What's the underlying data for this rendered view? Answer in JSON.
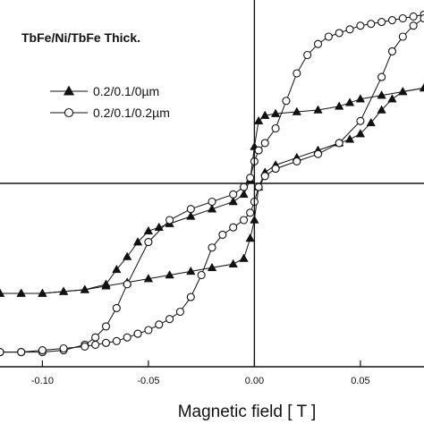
{
  "chart_data": {
    "type": "line",
    "title": "TbFe/Ni/TbFe Thick.",
    "xlabel": "Magnetic field [ T ]",
    "ylabel": "",
    "xlim": [
      -0.12,
      0.08
    ],
    "ylim": [
      -1.0,
      1.0
    ],
    "xticks": [
      -0.1,
      -0.05,
      0.0,
      0.05
    ],
    "xtick_labels": [
      "-0.10",
      "-0.05",
      "0.00",
      "0.05"
    ],
    "grid": false,
    "legend_position": "upper-left",
    "series": [
      {
        "name": "0.2/0.1/0µm",
        "marker": "filled-triangle",
        "color": "#111111",
        "loops": [
          {
            "branch": "descending",
            "x": [
              0.08,
              0.07,
              0.06,
              0.05,
              0.045,
              0.04,
              0.03,
              0.02,
              0.01,
              0.005,
              0.002,
              0.0,
              -0.002,
              -0.005,
              -0.01,
              -0.02,
              -0.03,
              -0.04,
              -0.045,
              -0.05,
              -0.055,
              -0.06,
              -0.065,
              -0.07,
              -0.08,
              -0.09,
              -0.1,
              -0.11,
              -0.12
            ],
            "y": [
              0.52,
              0.5,
              0.48,
              0.46,
              0.44,
              0.42,
              0.4,
              0.39,
              0.38,
              0.37,
              0.34,
              0.2,
              0.02,
              -0.06,
              -0.1,
              -0.14,
              -0.18,
              -0.22,
              -0.24,
              -0.26,
              -0.32,
              -0.4,
              -0.47,
              -0.55,
              -0.58,
              -0.59,
              -0.6,
              -0.6,
              -0.6
            ]
          },
          {
            "branch": "ascending",
            "x": [
              -0.12,
              -0.11,
              -0.1,
              -0.09,
              -0.08,
              -0.07,
              -0.06,
              -0.05,
              -0.04,
              -0.03,
              -0.02,
              -0.01,
              -0.005,
              -0.002,
              0.0,
              0.002,
              0.005,
              0.01,
              0.02,
              0.03,
              0.04,
              0.045,
              0.05,
              0.055,
              0.06,
              0.065,
              0.07,
              0.08
            ],
            "y": [
              -0.6,
              -0.6,
              -0.6,
              -0.59,
              -0.58,
              -0.56,
              -0.54,
              -0.52,
              -0.5,
              -0.48,
              -0.46,
              -0.44,
              -0.41,
              -0.3,
              -0.2,
              -0.02,
              0.06,
              0.1,
              0.14,
              0.18,
              0.22,
              0.24,
              0.27,
              0.33,
              0.4,
              0.46,
              0.5,
              0.52
            ]
          }
        ]
      },
      {
        "name": "0.2/0.1/0.2µm",
        "marker": "open-circle",
        "color": "#111111",
        "loops": [
          {
            "branch": "descending",
            "x": [
              0.08,
              0.075,
              0.07,
              0.065,
              0.06,
              0.055,
              0.05,
              0.045,
              0.04,
              0.035,
              0.03,
              0.025,
              0.02,
              0.015,
              0.01,
              0.005,
              0.002,
              0.0,
              -0.002,
              -0.005,
              -0.01,
              -0.02,
              -0.03,
              -0.04,
              -0.05,
              -0.06,
              -0.065,
              -0.07,
              -0.075,
              -0.08,
              -0.09,
              -0.1,
              -0.11,
              -0.12
            ],
            "y": [
              0.92,
              0.91,
              0.9,
              0.89,
              0.88,
              0.87,
              0.86,
              0.84,
              0.82,
              0.8,
              0.76,
              0.7,
              0.6,
              0.45,
              0.3,
              0.22,
              0.18,
              0.12,
              0.03,
              -0.02,
              -0.06,
              -0.1,
              -0.14,
              -0.2,
              -0.32,
              -0.55,
              -0.68,
              -0.78,
              -0.84,
              -0.88,
              -0.91,
              -0.92,
              -0.92,
              -0.92
            ]
          },
          {
            "branch": "ascending",
            "x": [
              -0.12,
              -0.11,
              -0.1,
              -0.09,
              -0.08,
              -0.075,
              -0.07,
              -0.065,
              -0.06,
              -0.055,
              -0.05,
              -0.045,
              -0.04,
              -0.035,
              -0.03,
              -0.025,
              -0.02,
              -0.015,
              -0.01,
              -0.005,
              -0.002,
              0.0,
              0.002,
              0.005,
              0.01,
              0.02,
              0.03,
              0.04,
              0.05,
              0.06,
              0.065,
              0.07,
              0.075,
              0.08
            ],
            "y": [
              -0.92,
              -0.92,
              -0.91,
              -0.9,
              -0.89,
              -0.88,
              -0.87,
              -0.86,
              -0.84,
              -0.82,
              -0.8,
              -0.77,
              -0.74,
              -0.7,
              -0.62,
              -0.5,
              -0.35,
              -0.28,
              -0.24,
              -0.2,
              -0.16,
              -0.1,
              -0.02,
              0.04,
              0.08,
              0.12,
              0.16,
              0.22,
              0.34,
              0.58,
              0.72,
              0.8,
              0.86,
              0.9
            ]
          }
        ]
      }
    ]
  }
}
